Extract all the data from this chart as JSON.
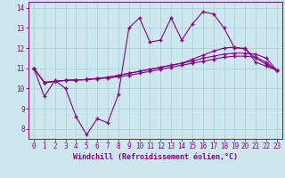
{
  "xlabel": "Windchill (Refroidissement éolien,°C)",
  "ylabel": "",
  "background_color": "#cce8ee",
  "grid_color": "#aaccd4",
  "line_color": "#880088",
  "xlim": [
    -0.5,
    23.5
  ],
  "ylim": [
    7.5,
    14.3
  ],
  "xticks": [
    0,
    1,
    2,
    3,
    4,
    5,
    6,
    7,
    8,
    9,
    10,
    11,
    12,
    13,
    14,
    15,
    16,
    17,
    18,
    19,
    20,
    21,
    22,
    23
  ],
  "yticks": [
    8,
    9,
    10,
    11,
    12,
    13,
    14
  ],
  "line1_x": [
    0,
    1,
    2,
    3,
    4,
    5,
    6,
    7,
    8,
    9,
    10,
    11,
    12,
    13,
    14,
    15,
    16,
    17,
    18,
    19,
    20,
    21,
    22,
    23
  ],
  "line1_y": [
    11.0,
    9.6,
    10.4,
    10.0,
    8.6,
    7.7,
    8.5,
    8.3,
    9.7,
    13.0,
    13.5,
    12.3,
    12.4,
    13.5,
    12.4,
    13.2,
    13.8,
    13.7,
    13.0,
    12.0,
    12.0,
    11.3,
    11.1,
    10.9
  ],
  "line2_x": [
    0,
    1,
    2,
    3,
    4,
    5,
    6,
    7,
    8,
    9,
    10,
    11,
    12,
    13,
    14,
    15,
    16,
    17,
    18,
    19,
    20,
    21,
    22,
    23
  ],
  "line2_y": [
    11.0,
    10.3,
    10.35,
    10.4,
    10.42,
    10.44,
    10.5,
    10.55,
    10.65,
    10.75,
    10.85,
    10.95,
    11.05,
    11.15,
    11.25,
    11.35,
    11.5,
    11.6,
    11.7,
    11.75,
    11.75,
    11.7,
    11.5,
    10.9
  ],
  "line3_x": [
    0,
    1,
    2,
    3,
    4,
    5,
    6,
    7,
    8,
    9,
    10,
    11,
    12,
    13,
    14,
    15,
    16,
    17,
    18,
    19,
    20,
    21,
    22,
    23
  ],
  "line3_y": [
    11.0,
    10.3,
    10.35,
    10.4,
    10.42,
    10.44,
    10.5,
    10.55,
    10.65,
    10.75,
    10.85,
    10.95,
    11.05,
    11.15,
    11.25,
    11.45,
    11.65,
    11.85,
    12.0,
    12.05,
    11.95,
    11.5,
    11.2,
    10.9
  ],
  "line4_x": [
    0,
    1,
    2,
    3,
    4,
    5,
    6,
    7,
    8,
    9,
    10,
    11,
    12,
    13,
    14,
    15,
    16,
    17,
    18,
    19,
    20,
    21,
    22,
    23
  ],
  "line4_y": [
    11.0,
    10.3,
    10.35,
    10.4,
    10.42,
    10.44,
    10.48,
    10.52,
    10.58,
    10.65,
    10.75,
    10.85,
    10.95,
    11.05,
    11.15,
    11.25,
    11.35,
    11.45,
    11.55,
    11.6,
    11.6,
    11.55,
    11.3,
    10.9
  ],
  "tick_fontsize": 5.5,
  "label_fontsize": 6.0
}
